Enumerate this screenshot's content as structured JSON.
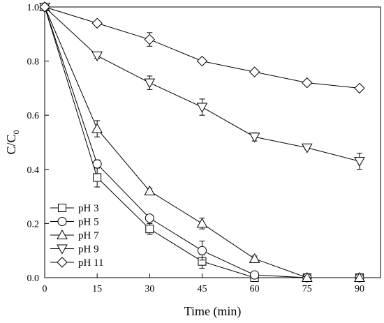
{
  "chart_data": {
    "type": "line",
    "title": "",
    "xlabel": "Time (min)",
    "ylabel": "C/C",
    "ylabel_sub": "0",
    "xlim": [
      0,
      96
    ],
    "ylim": [
      0,
      1.0
    ],
    "x_ticks": [
      0,
      15,
      30,
      45,
      60,
      75,
      90
    ],
    "y_ticks": [
      0.0,
      0.2,
      0.4,
      0.6,
      0.8,
      1.0
    ],
    "x_tick_labels": [
      "0",
      "15",
      "30",
      "45",
      "60",
      "75",
      "90"
    ],
    "y_tick_labels": [
      "0.0",
      "0.2",
      "0.4",
      "0.6",
      "0.8",
      "1.0"
    ],
    "legend_position": "bottom-left",
    "grid": false,
    "x": [
      0,
      15,
      30,
      45,
      60,
      75,
      90
    ],
    "series": [
      {
        "name": "pH 3",
        "marker": "square",
        "values": [
          1.0,
          0.37,
          0.18,
          0.06,
          0.0,
          0.0,
          0.0
        ],
        "errors": [
          0,
          0.035,
          0.02,
          0.025,
          0,
          0,
          0
        ]
      },
      {
        "name": "pH 5",
        "marker": "circle",
        "values": [
          1.0,
          0.42,
          0.22,
          0.1,
          0.01,
          0.0,
          0.0
        ],
        "errors": [
          0,
          0.015,
          0.012,
          0.035,
          0.005,
          0,
          0
        ]
      },
      {
        "name": "pH 7",
        "marker": "triangle-up",
        "values": [
          1.0,
          0.55,
          0.32,
          0.2,
          0.07,
          0.0,
          0.0
        ],
        "errors": [
          0,
          0.03,
          0.01,
          0.02,
          0.01,
          0,
          0
        ]
      },
      {
        "name": "pH 9",
        "marker": "triangle-down",
        "values": [
          1.0,
          0.82,
          0.72,
          0.63,
          0.52,
          0.48,
          0.43
        ],
        "errors": [
          0,
          0.01,
          0.025,
          0.03,
          0.015,
          0.005,
          0.03
        ]
      },
      {
        "name": "pH 11",
        "marker": "diamond",
        "values": [
          1.0,
          0.94,
          0.88,
          0.8,
          0.76,
          0.72,
          0.7
        ],
        "errors": [
          0,
          0.008,
          0.025,
          0.008,
          0.008,
          0.008,
          0.005
        ]
      }
    ]
  }
}
